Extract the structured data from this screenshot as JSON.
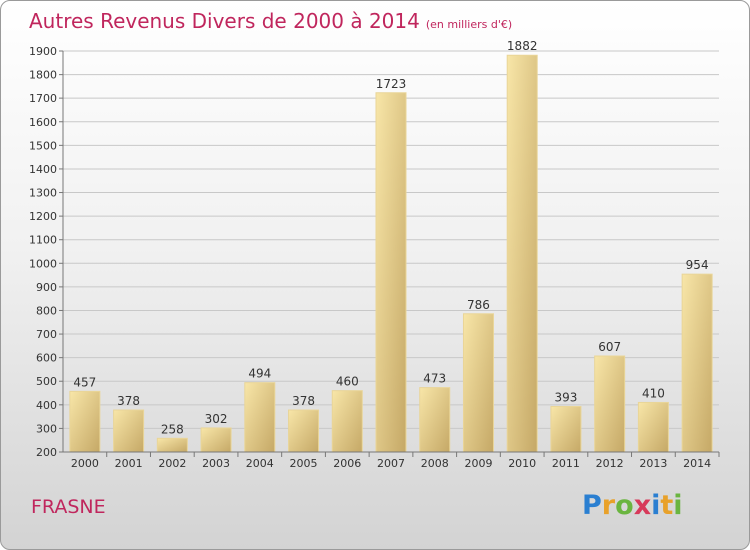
{
  "title": "Autres Revenus Divers de 2000 à 2014",
  "unit": "(en milliers d'€)",
  "commune": "FRASNE",
  "logo": [
    "P",
    "r",
    "o",
    "x",
    "i",
    "t",
    "i"
  ],
  "colors": {
    "bar_light": "#f7e3a3",
    "bar_dark": "#c8ab6a",
    "title": "#c0265d"
  },
  "chart_data": {
    "type": "bar",
    "title": "Autres Revenus Divers de 2000 à 2014",
    "subtitle": "(en milliers d'€)",
    "categories": [
      "2000",
      "2001",
      "2002",
      "2003",
      "2004",
      "2005",
      "2006",
      "2007",
      "2008",
      "2009",
      "2010",
      "2011",
      "2012",
      "2013",
      "2014"
    ],
    "values": [
      457,
      378,
      258,
      302,
      494,
      378,
      460,
      1723,
      473,
      786,
      1882,
      393,
      607,
      410,
      954
    ],
    "ylim": [
      200,
      1900
    ],
    "yticks": [
      200,
      300,
      400,
      500,
      600,
      700,
      800,
      900,
      1000,
      1100,
      1200,
      1300,
      1400,
      1500,
      1600,
      1700,
      1800,
      1900
    ],
    "grid": true,
    "xlabel": "",
    "ylabel": ""
  }
}
